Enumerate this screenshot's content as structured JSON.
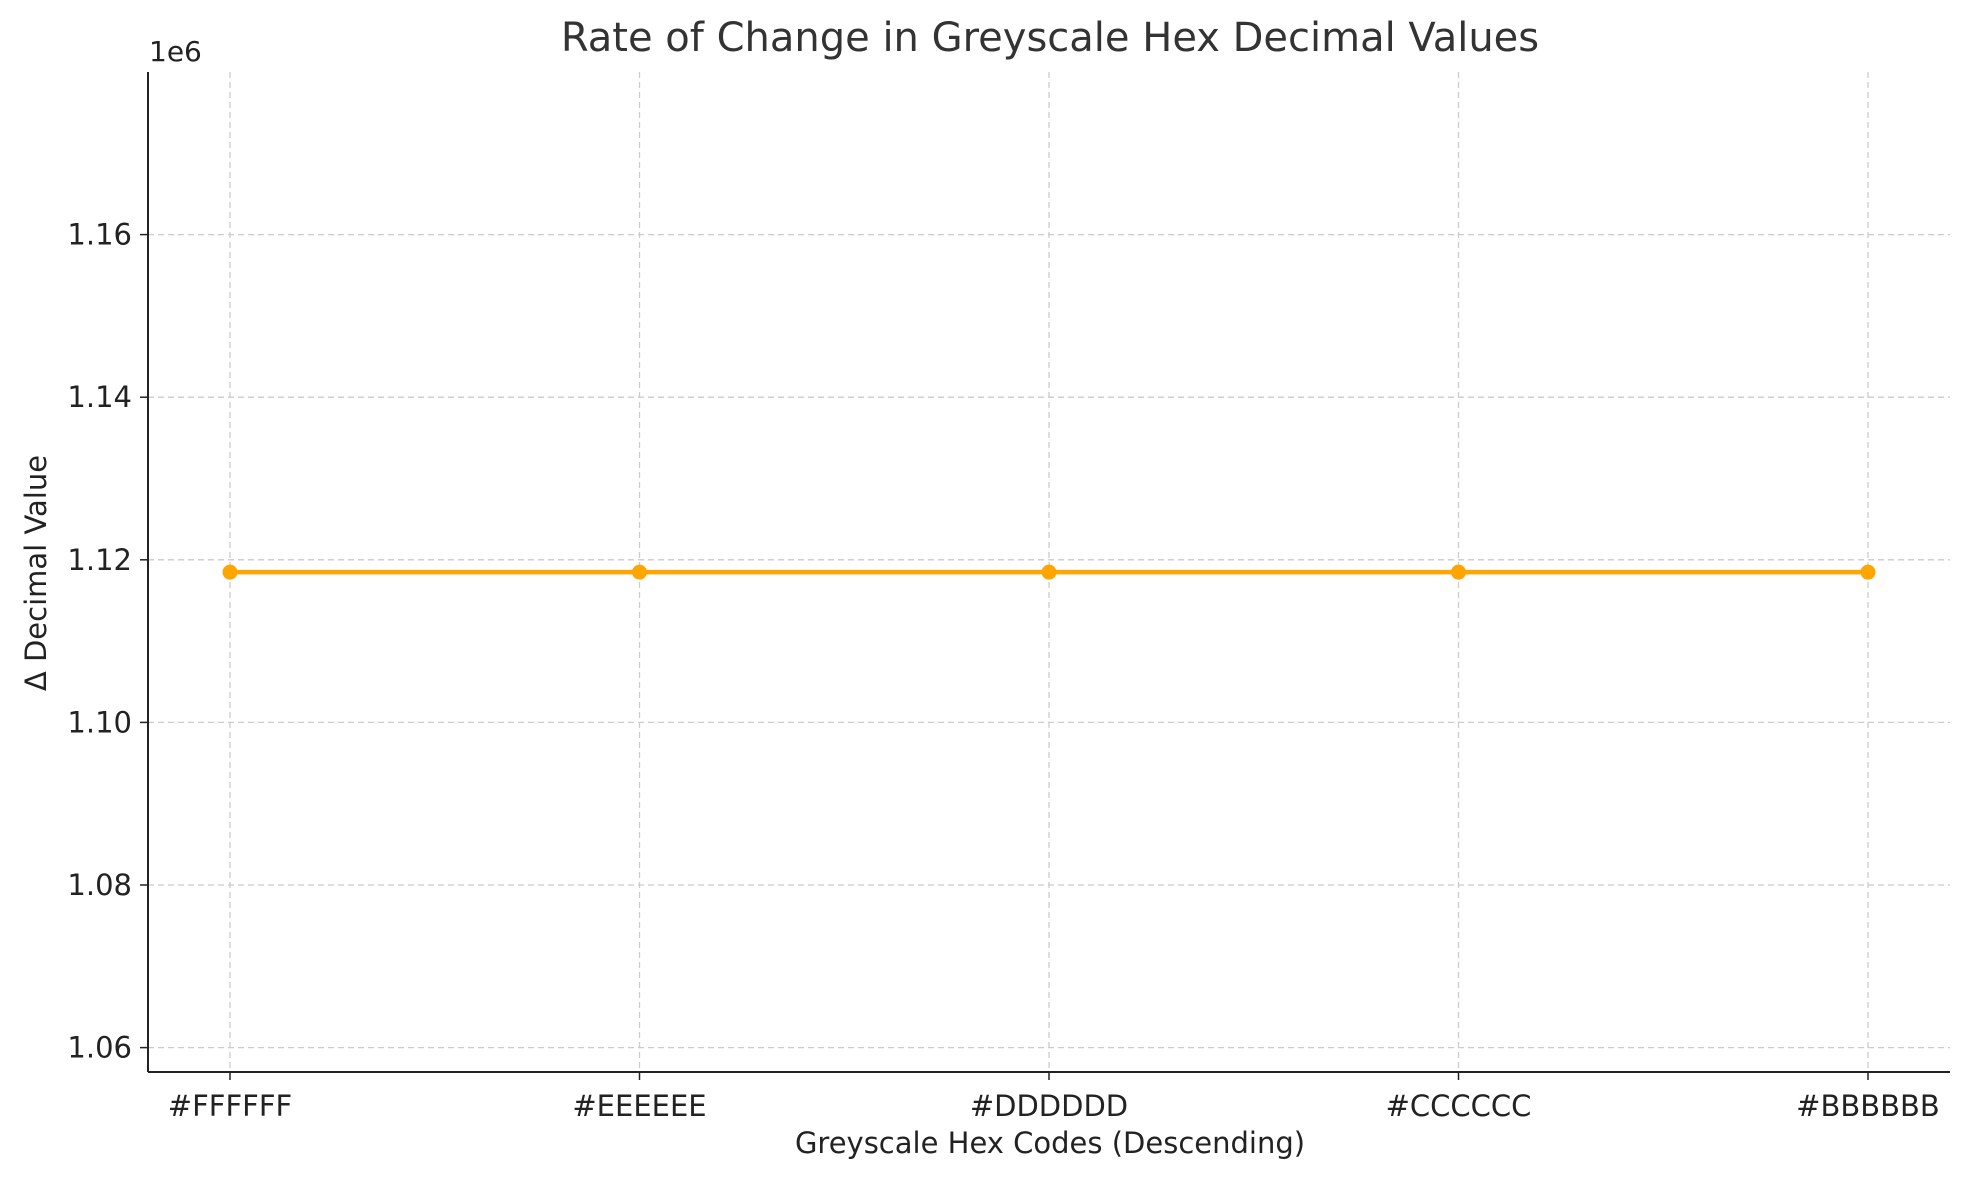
{
  "chart_data": {
    "type": "line",
    "title": "Rate of Change in Greyscale Hex Decimal Values",
    "xlabel": "Greyscale Hex Codes (Descending)",
    "ylabel": "Δ Decimal Value",
    "y_offset_label": "1e6",
    "categories": [
      "#FFFFFF",
      "#EEEEEE",
      "#DDDDDD",
      "#CCCCCC",
      "#BBBBBB"
    ],
    "series": [
      {
        "values": [
          1118481,
          1118481,
          1118481,
          1118481,
          1118481
        ],
        "color": "#FFA500",
        "marker": "circle"
      }
    ],
    "ylim": [
      1057000,
      1180000
    ],
    "yticks": [
      1060000,
      1080000,
      1100000,
      1120000,
      1140000,
      1160000
    ],
    "ytick_labels": [
      "1.06",
      "1.08",
      "1.10",
      "1.12",
      "1.14",
      "1.16"
    ],
    "grid": true,
    "grid_style": "dashed"
  }
}
